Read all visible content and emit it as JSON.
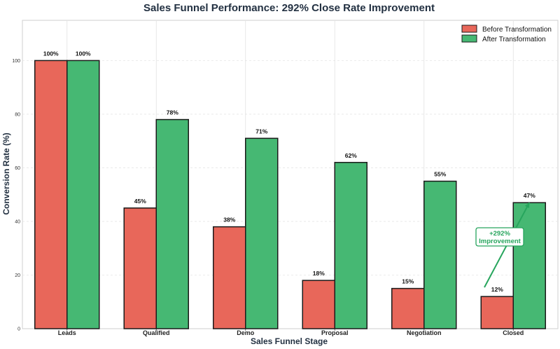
{
  "chart_data": {
    "type": "bar",
    "title": "Sales Funnel Performance: 292% Close Rate Improvement",
    "xlabel": "Sales Funnel Stage",
    "ylabel": "Conversion Rate (%)",
    "ylim": [
      0,
      115
    ],
    "yticks": [
      0,
      20,
      40,
      60,
      80,
      100
    ],
    "grid": true,
    "legend_position": "top-right",
    "categories": [
      "Leads",
      "Qualified",
      "Demo",
      "Proposal",
      "Negotiation",
      "Closed"
    ],
    "series": [
      {
        "name": "Before Transformation",
        "color": "#e8675a",
        "values": [
          100,
          45,
          38,
          18,
          15,
          12
        ],
        "labels": [
          "100%",
          "45%",
          "38%",
          "18%",
          "15%",
          "12%"
        ]
      },
      {
        "name": "After Transformation",
        "color": "#46b873",
        "values": [
          100,
          78,
          71,
          62,
          55,
          47
        ],
        "labels": [
          "100%",
          "78%",
          "71%",
          "62%",
          "55%",
          "47%"
        ]
      }
    ],
    "annotation": {
      "line1": "+292%",
      "line2": "Improvement",
      "color": "#27a55d",
      "target_category": "Closed",
      "target_value": 47
    }
  }
}
